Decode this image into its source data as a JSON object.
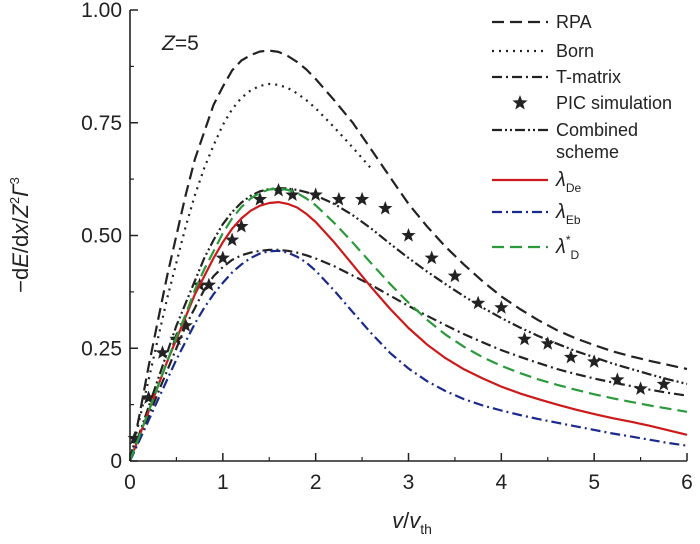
{
  "chart_data": {
    "type": "line",
    "annotation": "Z=5",
    "xlabel": {
      "main": "v",
      "sep": "/",
      "sym": "v",
      "sub": "th"
    },
    "ylabel": {
      "pre": "−d",
      "e": "E",
      "mid": "/d",
      "x": "x",
      "slash": "/",
      "z": "Z",
      "zexp": "2",
      "gamma": "Γ",
      "gexp": "3"
    },
    "xlim": [
      0,
      6
    ],
    "ylim": [
      0,
      1.0
    ],
    "xticks": [
      "0",
      "1",
      "2",
      "3",
      "4",
      "5",
      "6"
    ],
    "yticks": [
      "0",
      "0.25",
      "0.50",
      "0.75",
      "1.00"
    ],
    "legend_position": "top-right",
    "series": [
      {
        "key": "rpa",
        "name": "RPA",
        "color": "#222222",
        "dash": "dash",
        "x": [
          0,
          0.1,
          0.2,
          0.3,
          0.4,
          0.5,
          0.6,
          0.7,
          0.8,
          0.9,
          1.0,
          1.1,
          1.2,
          1.3,
          1.4,
          1.5,
          1.6,
          1.7,
          1.8,
          1.9,
          2.0,
          2.2,
          2.4,
          2.6,
          2.8,
          3.0,
          3.2,
          3.4,
          3.6,
          3.8,
          4.0,
          4.2,
          4.4,
          4.6,
          4.8,
          5.0,
          5.2,
          5.4,
          5.6,
          5.8,
          6.0
        ],
        "y": [
          0,
          0.1,
          0.21,
          0.31,
          0.41,
          0.5,
          0.59,
          0.67,
          0.73,
          0.79,
          0.83,
          0.866,
          0.888,
          0.9,
          0.908,
          0.91,
          0.907,
          0.898,
          0.885,
          0.868,
          0.847,
          0.8,
          0.75,
          0.69,
          0.63,
          0.57,
          0.52,
          0.475,
          0.435,
          0.398,
          0.365,
          0.337,
          0.312,
          0.29,
          0.272,
          0.257,
          0.243,
          0.232,
          0.222,
          0.213,
          0.204
        ]
      },
      {
        "key": "born",
        "name": "Born",
        "color": "#222222",
        "dash": "dot",
        "x": [
          0,
          0.1,
          0.2,
          0.3,
          0.4,
          0.5,
          0.6,
          0.7,
          0.8,
          0.9,
          1.0,
          1.1,
          1.2,
          1.3,
          1.4,
          1.5,
          1.6,
          1.7,
          1.8,
          1.9,
          2.0,
          2.2,
          2.4,
          2.6
        ],
        "y": [
          0,
          0.09,
          0.18,
          0.27,
          0.36,
          0.44,
          0.52,
          0.59,
          0.65,
          0.7,
          0.745,
          0.78,
          0.805,
          0.822,
          0.832,
          0.836,
          0.834,
          0.827,
          0.815,
          0.8,
          0.782,
          0.74,
          0.695,
          0.648
        ]
      },
      {
        "key": "tmatrix",
        "name": "T-matrix",
        "color": "#222222",
        "dash": "dashdot",
        "x": [
          0,
          0.1,
          0.2,
          0.3,
          0.4,
          0.5,
          0.6,
          0.7,
          0.8,
          0.9,
          1.0,
          1.1,
          1.2,
          1.3,
          1.4,
          1.5,
          1.6,
          1.7,
          1.8,
          1.9,
          2.0,
          2.2,
          2.4,
          2.6,
          2.8,
          3.0,
          3.2,
          3.4,
          3.6,
          3.8,
          4.0,
          4.2,
          4.4,
          4.6,
          4.8,
          5.0,
          5.2,
          5.4,
          5.6,
          5.8,
          6.0
        ],
        "y": [
          0,
          0.05,
          0.1,
          0.15,
          0.2,
          0.25,
          0.3,
          0.34,
          0.38,
          0.41,
          0.43,
          0.446,
          0.456,
          0.462,
          0.466,
          0.468,
          0.468,
          0.466,
          0.462,
          0.456,
          0.449,
          0.432,
          0.411,
          0.39,
          0.367,
          0.344,
          0.322,
          0.301,
          0.281,
          0.263,
          0.246,
          0.231,
          0.217,
          0.204,
          0.193,
          0.183,
          0.174,
          0.166,
          0.158,
          0.151,
          0.145
        ]
      },
      {
        "key": "pic",
        "name": "PIC simulation",
        "color": "#222222",
        "dash": "none",
        "marker": "star",
        "x": [
          0.05,
          0.2,
          0.35,
          0.5,
          0.6,
          0.75,
          0.85,
          1.0,
          1.1,
          1.2,
          1.4,
          1.6,
          1.75,
          2.0,
          2.25,
          2.5,
          2.75,
          3.0,
          3.25,
          3.5,
          3.75,
          4.0,
          4.25,
          4.5,
          4.75,
          5.0,
          5.25,
          5.5,
          5.75
        ],
        "y": [
          0.05,
          0.14,
          0.24,
          0.27,
          0.3,
          0.39,
          0.39,
          0.45,
          0.49,
          0.52,
          0.58,
          0.6,
          0.59,
          0.59,
          0.58,
          0.58,
          0.56,
          0.5,
          0.45,
          0.41,
          0.35,
          0.34,
          0.27,
          0.26,
          0.23,
          0.22,
          0.18,
          0.16,
          0.17
        ]
      },
      {
        "key": "combined",
        "name": "Combined scheme",
        "name_lines": [
          "Combined",
          "scheme"
        ],
        "color": "#222222",
        "dash": "dashdotdot",
        "x": [
          0,
          0.1,
          0.2,
          0.3,
          0.4,
          0.5,
          0.6,
          0.7,
          0.8,
          0.9,
          1.0,
          1.1,
          1.2,
          1.3,
          1.4,
          1.5,
          1.6,
          1.7,
          1.8,
          1.9,
          2.0,
          2.2,
          2.4,
          2.6,
          2.8,
          3.0,
          3.2,
          3.4,
          3.6,
          3.8,
          4.0,
          4.2,
          4.4,
          4.6,
          4.8,
          5.0,
          5.2,
          5.4,
          5.6,
          5.8,
          6.0
        ],
        "y": [
          0,
          0.06,
          0.12,
          0.18,
          0.24,
          0.3,
          0.35,
          0.4,
          0.45,
          0.49,
          0.525,
          0.552,
          0.573,
          0.588,
          0.598,
          0.603,
          0.605,
          0.604,
          0.601,
          0.596,
          0.589,
          0.57,
          0.545,
          0.515,
          0.482,
          0.45,
          0.42,
          0.392,
          0.365,
          0.34,
          0.317,
          0.296,
          0.277,
          0.26,
          0.244,
          0.23,
          0.216,
          0.204,
          0.192,
          0.181,
          0.171
        ]
      },
      {
        "key": "lde",
        "name": "λDe",
        "label_main": "λ",
        "label_sub": "De",
        "color": "#cc1a1a",
        "dash": "solid",
        "x": [
          0,
          0.1,
          0.2,
          0.3,
          0.4,
          0.5,
          0.6,
          0.7,
          0.8,
          0.9,
          1.0,
          1.1,
          1.2,
          1.3,
          1.4,
          1.5,
          1.6,
          1.7,
          1.8,
          1.9,
          2.0,
          2.2,
          2.4,
          2.6,
          2.8,
          3.0,
          3.2,
          3.4,
          3.6,
          3.8,
          4.0,
          4.2,
          4.4,
          4.6,
          4.8,
          5.0,
          5.2,
          5.4,
          5.6,
          5.8,
          6.0
        ],
        "y": [
          0,
          0.055,
          0.11,
          0.165,
          0.22,
          0.27,
          0.32,
          0.37,
          0.41,
          0.45,
          0.485,
          0.515,
          0.538,
          0.555,
          0.566,
          0.572,
          0.574,
          0.57,
          0.562,
          0.548,
          0.53,
          0.485,
          0.435,
          0.385,
          0.338,
          0.295,
          0.258,
          0.228,
          0.203,
          0.183,
          0.165,
          0.15,
          0.137,
          0.125,
          0.114,
          0.104,
          0.095,
          0.087,
          0.078,
          0.068,
          0.058
        ]
      },
      {
        "key": "leb",
        "name": "λEb",
        "label_main": "λ",
        "label_sub": "Eb",
        "color": "#1a2a8c",
        "dash": "dashdot",
        "x": [
          0,
          0.1,
          0.2,
          0.3,
          0.4,
          0.5,
          0.6,
          0.7,
          0.8,
          0.9,
          1.0,
          1.1,
          1.2,
          1.3,
          1.4,
          1.5,
          1.6,
          1.7,
          1.8,
          1.9,
          2.0,
          2.2,
          2.4,
          2.6,
          2.8,
          3.0,
          3.2,
          3.4,
          3.6,
          3.8,
          4.0,
          4.2,
          4.4,
          4.6,
          4.8,
          5.0,
          5.2,
          5.4,
          5.6,
          5.8,
          6.0
        ],
        "y": [
          0,
          0.045,
          0.09,
          0.135,
          0.18,
          0.225,
          0.265,
          0.305,
          0.34,
          0.37,
          0.395,
          0.418,
          0.436,
          0.45,
          0.46,
          0.465,
          0.466,
          0.462,
          0.453,
          0.44,
          0.422,
          0.378,
          0.33,
          0.283,
          0.24,
          0.205,
          0.177,
          0.155,
          0.137,
          0.123,
          0.112,
          0.102,
          0.093,
          0.085,
          0.077,
          0.069,
          0.061,
          0.054,
          0.047,
          0.04,
          0.034
        ]
      },
      {
        "key": "ld",
        "name": "λ*D",
        "label_main": "λ",
        "label_sup": "*",
        "label_sub": "D",
        "color": "#2a9a3a",
        "dash": "dash",
        "x": [
          0,
          0.1,
          0.2,
          0.3,
          0.4,
          0.5,
          0.6,
          0.7,
          0.8,
          0.9,
          1.0,
          1.1,
          1.2,
          1.3,
          1.4,
          1.5,
          1.6,
          1.7,
          1.8,
          1.9,
          2.0,
          2.2,
          2.4,
          2.6,
          2.8,
          3.0,
          3.2,
          3.4,
          3.6,
          3.8,
          4.0,
          4.2,
          4.4,
          4.6,
          4.8,
          5.0,
          5.2,
          5.4,
          5.6,
          5.8,
          6.0
        ],
        "y": [
          0,
          0.055,
          0.11,
          0.165,
          0.22,
          0.275,
          0.325,
          0.38,
          0.425,
          0.465,
          0.505,
          0.538,
          0.563,
          0.582,
          0.595,
          0.602,
          0.604,
          0.601,
          0.594,
          0.582,
          0.567,
          0.528,
          0.484,
          0.438,
          0.393,
          0.351,
          0.313,
          0.28,
          0.253,
          0.23,
          0.211,
          0.195,
          0.181,
          0.169,
          0.158,
          0.148,
          0.139,
          0.131,
          0.123,
          0.116,
          0.109
        ]
      }
    ]
  }
}
